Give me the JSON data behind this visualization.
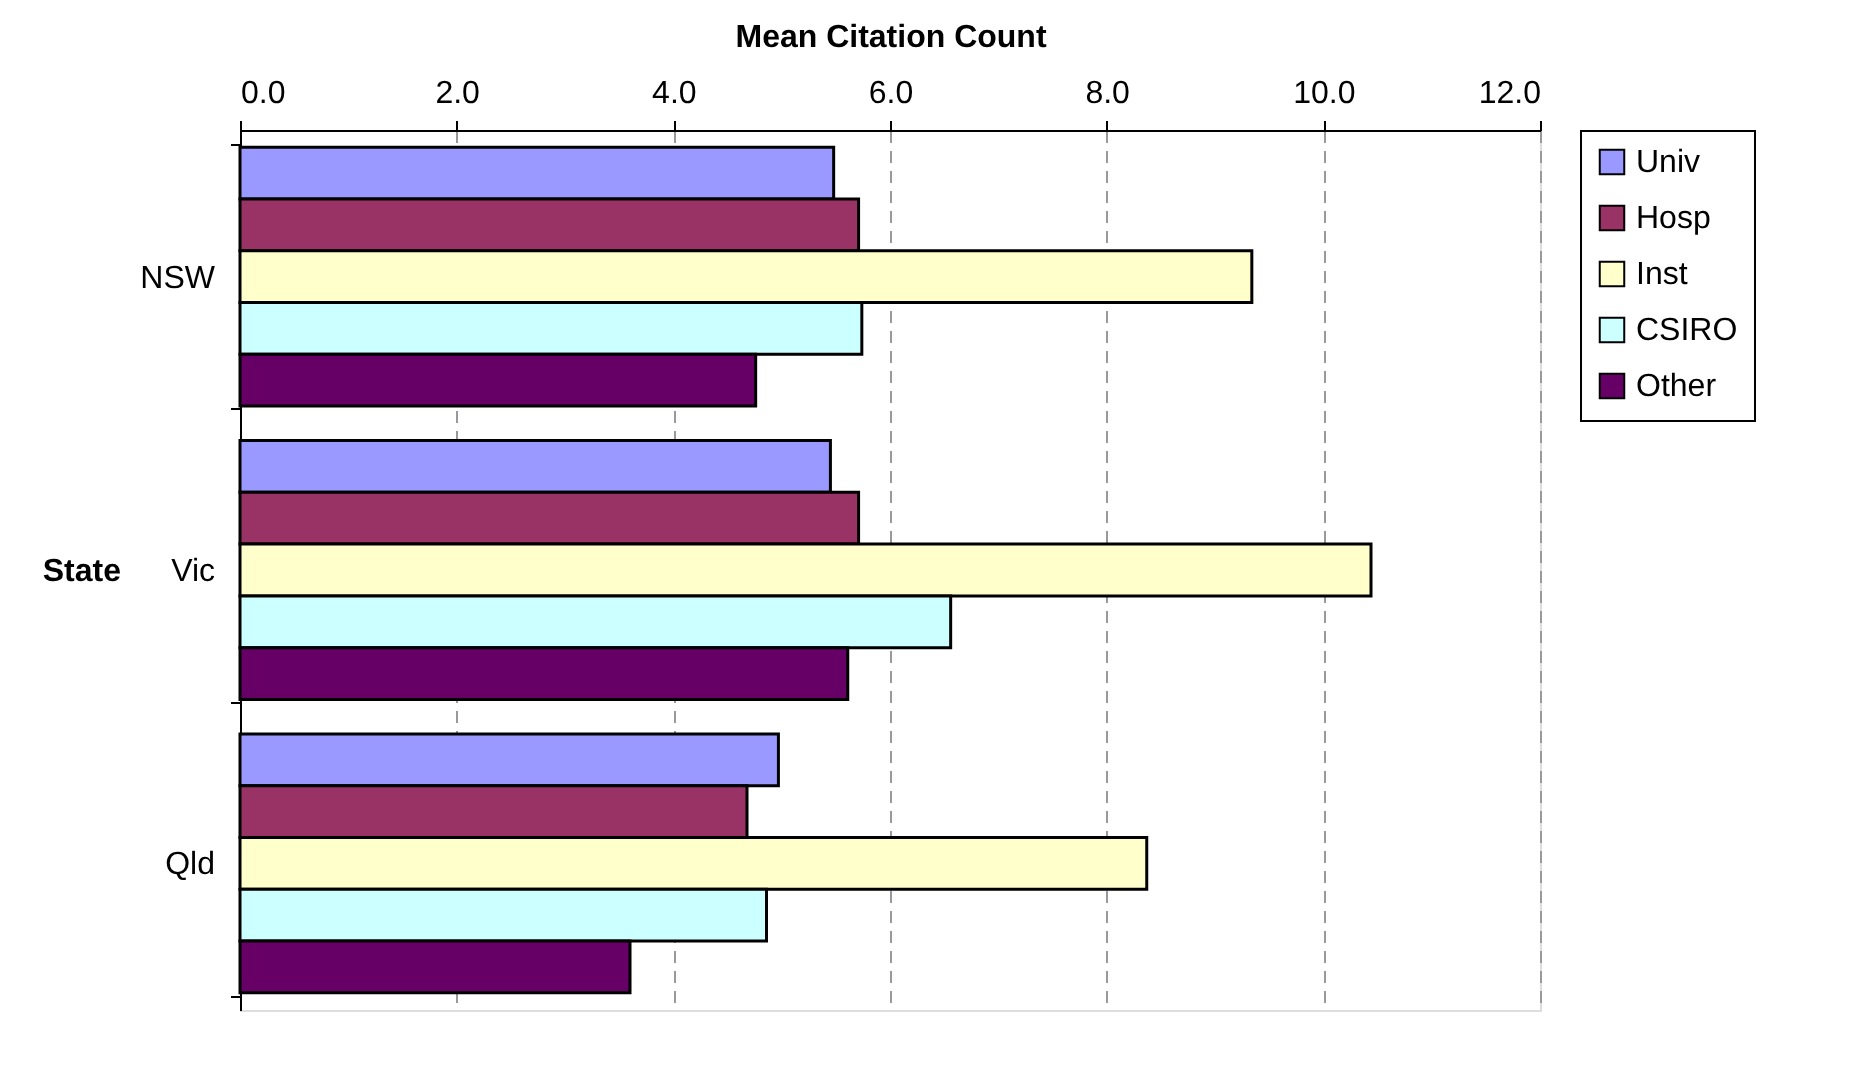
{
  "chart_data": {
    "type": "bar",
    "orientation": "horizontal",
    "xlabel": "Mean Citation Count",
    "ylabel": "State",
    "categories": [
      "NSW",
      "Vic",
      "Qld"
    ],
    "series": [
      {
        "name": "Univ",
        "color": "#9999ff",
        "values": [
          5.48,
          5.45,
          4.97
        ]
      },
      {
        "name": "Hosp",
        "color": "#993366",
        "values": [
          5.71,
          5.71,
          4.68
        ]
      },
      {
        "name": "Inst",
        "color": "#ffffcc",
        "values": [
          9.34,
          10.44,
          8.37
        ]
      },
      {
        "name": "CSIRO",
        "color": "#ccffff",
        "values": [
          5.74,
          6.56,
          4.86
        ]
      },
      {
        "name": "Other",
        "color": "#660066",
        "values": [
          4.76,
          5.61,
          3.6
        ]
      }
    ],
    "xlim": [
      0,
      12
    ],
    "xticks": [
      {
        "value": 0,
        "label": "0.0"
      },
      {
        "value": 2,
        "label": "2.0"
      },
      {
        "value": 4,
        "label": "4.0"
      },
      {
        "value": 6,
        "label": "6.0"
      },
      {
        "value": 8,
        "label": "8.0"
      },
      {
        "value": 10,
        "label": "10.0"
      },
      {
        "value": 12,
        "label": "12.0"
      }
    ],
    "grid": "x",
    "legend": "right"
  }
}
